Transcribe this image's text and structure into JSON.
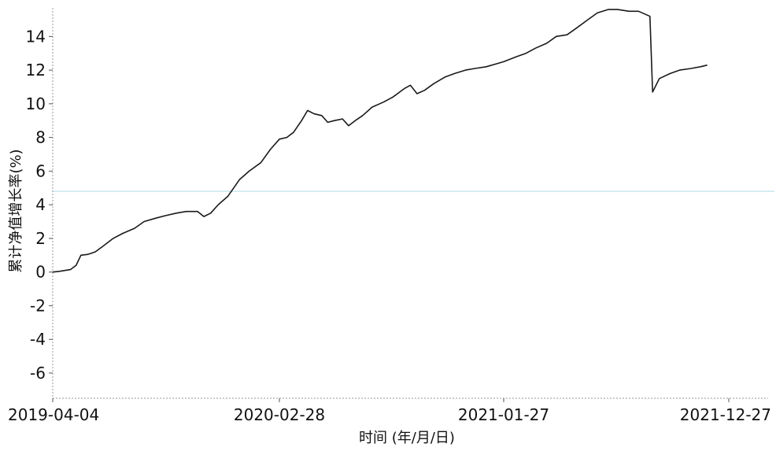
{
  "chart_data": {
    "type": "line",
    "title": "",
    "xlabel": "时间 (年/月/日)",
    "ylabel": "累计净值增长率(%)",
    "x_tick_labels": [
      "2019-04-04",
      "2020-02-28",
      "2021-01-27",
      "2021-12-27"
    ],
    "x_ticks": [
      "2019-04-04",
      "2020-02-28",
      "2021-01-27",
      "2021-12-27"
    ],
    "xlim": [
      "2019-04-04",
      "2021-12-27"
    ],
    "ylim": [
      -7.5,
      15.7
    ],
    "y_ticks": [
      -6,
      -4,
      -2,
      0,
      2,
      4,
      6,
      8,
      10,
      12,
      14
    ],
    "y_tick_labels": [
      "-6",
      "-4",
      "-2",
      "0",
      "2",
      "4",
      "6",
      "8",
      "10",
      "12",
      "14"
    ],
    "grid": false,
    "reference_line_y": 4.8,
    "reference_line_color": "#c8e6f0",
    "line_color": "#1a1a1a",
    "series": [
      {
        "points": [
          [
            "2019-04-04",
            0.0
          ],
          [
            "2019-04-15",
            0.05
          ],
          [
            "2019-04-30",
            0.15
          ],
          [
            "2019-05-08",
            0.4
          ],
          [
            "2019-05-15",
            1.0
          ],
          [
            "2019-05-25",
            1.05
          ],
          [
            "2019-06-05",
            1.2
          ],
          [
            "2019-06-15",
            1.5
          ],
          [
            "2019-07-01",
            2.0
          ],
          [
            "2019-07-15",
            2.3
          ],
          [
            "2019-08-01",
            2.6
          ],
          [
            "2019-08-15",
            3.0
          ],
          [
            "2019-09-01",
            3.2
          ],
          [
            "2019-09-15",
            3.35
          ],
          [
            "2019-10-01",
            3.5
          ],
          [
            "2019-10-15",
            3.6
          ],
          [
            "2019-11-01",
            3.6
          ],
          [
            "2019-11-10",
            3.3
          ],
          [
            "2019-11-20",
            3.5
          ],
          [
            "2019-12-01",
            4.0
          ],
          [
            "2019-12-15",
            4.5
          ],
          [
            "2020-01-01",
            5.5
          ],
          [
            "2020-01-15",
            6.0
          ],
          [
            "2020-02-01",
            6.5
          ],
          [
            "2020-02-15",
            7.3
          ],
          [
            "2020-02-28",
            7.9
          ],
          [
            "2020-03-10",
            8.0
          ],
          [
            "2020-03-20",
            8.3
          ],
          [
            "2020-04-01",
            9.0
          ],
          [
            "2020-04-10",
            9.6
          ],
          [
            "2020-04-20",
            9.4
          ],
          [
            "2020-05-01",
            9.3
          ],
          [
            "2020-05-10",
            8.9
          ],
          [
            "2020-05-20",
            9.0
          ],
          [
            "2020-06-01",
            9.1
          ],
          [
            "2020-06-10",
            8.7
          ],
          [
            "2020-06-20",
            9.0
          ],
          [
            "2020-07-01",
            9.3
          ],
          [
            "2020-07-15",
            9.8
          ],
          [
            "2020-08-01",
            10.1
          ],
          [
            "2020-08-15",
            10.4
          ],
          [
            "2020-09-01",
            10.9
          ],
          [
            "2020-09-10",
            11.1
          ],
          [
            "2020-09-20",
            10.6
          ],
          [
            "2020-10-01",
            10.8
          ],
          [
            "2020-10-15",
            11.2
          ],
          [
            "2020-11-01",
            11.6
          ],
          [
            "2020-11-15",
            11.8
          ],
          [
            "2020-12-01",
            12.0
          ],
          [
            "2020-12-15",
            12.1
          ],
          [
            "2021-01-01",
            12.2
          ],
          [
            "2021-01-27",
            12.5
          ],
          [
            "2021-02-15",
            12.8
          ],
          [
            "2021-03-01",
            13.0
          ],
          [
            "2021-03-15",
            13.3
          ],
          [
            "2021-04-01",
            13.6
          ],
          [
            "2021-04-15",
            14.0
          ],
          [
            "2021-05-01",
            14.1
          ],
          [
            "2021-05-15",
            14.5
          ],
          [
            "2021-06-01",
            15.0
          ],
          [
            "2021-06-15",
            15.4
          ],
          [
            "2021-07-01",
            15.6
          ],
          [
            "2021-07-15",
            15.6
          ],
          [
            "2021-08-01",
            15.5
          ],
          [
            "2021-08-15",
            15.5
          ],
          [
            "2021-09-01",
            15.2
          ],
          [
            "2021-09-05",
            10.7
          ],
          [
            "2021-09-15",
            11.5
          ],
          [
            "2021-10-01",
            11.8
          ],
          [
            "2021-10-15",
            12.0
          ],
          [
            "2021-11-01",
            12.1
          ],
          [
            "2021-11-15",
            12.2
          ],
          [
            "2021-11-25",
            12.3
          ]
        ]
      }
    ]
  }
}
